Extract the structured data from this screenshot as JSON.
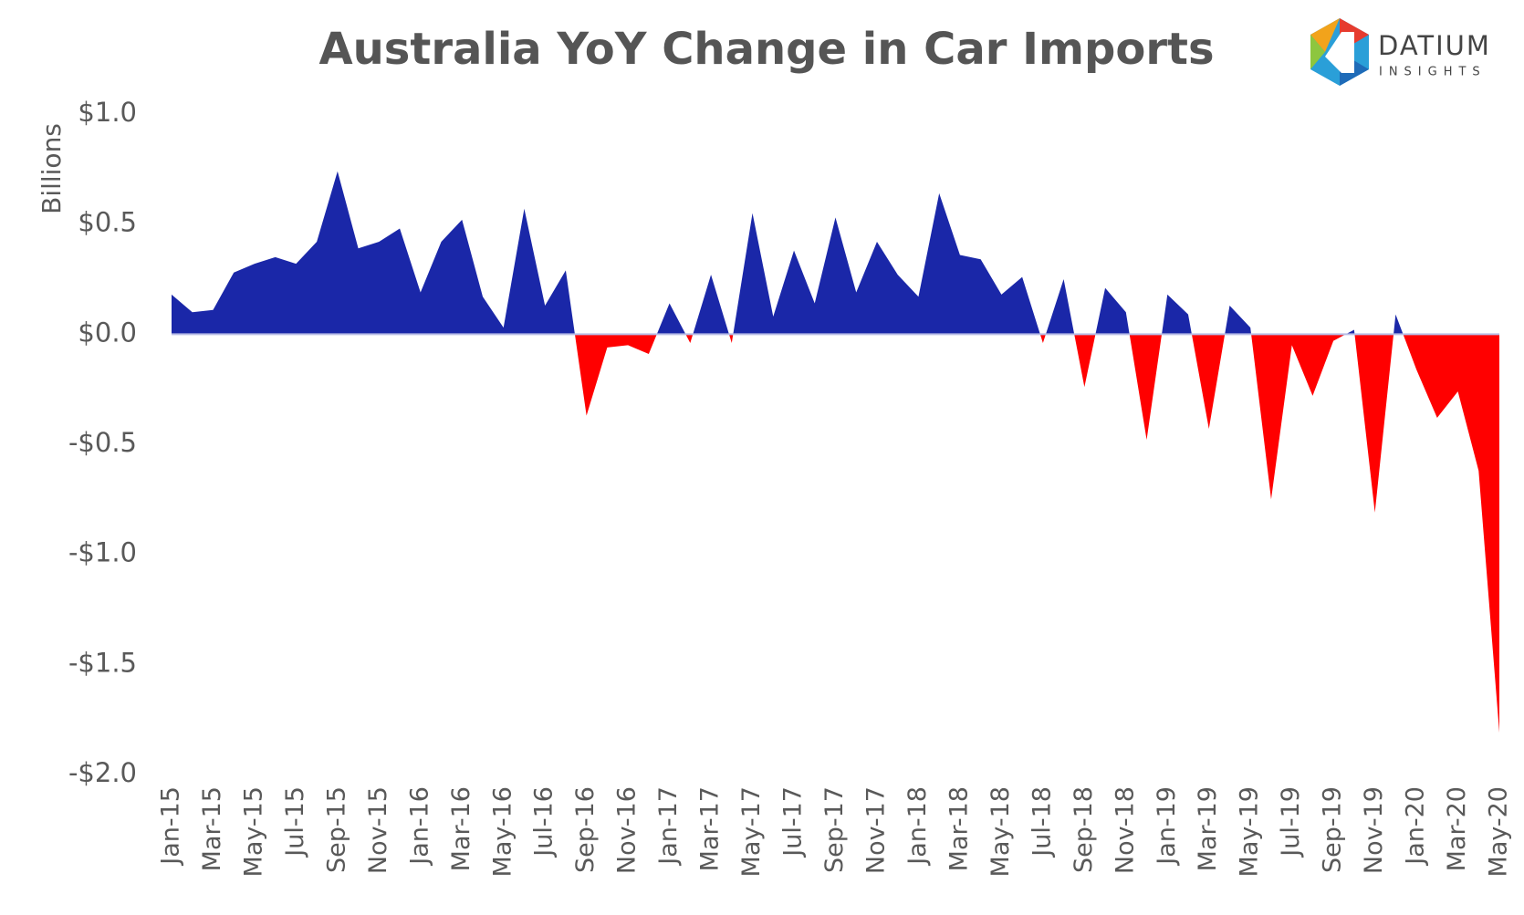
{
  "chart_data": {
    "type": "area",
    "title": "Australia YoY Change in Car Imports",
    "ylabel": "Billions",
    "logo": {
      "name": "DATIUM",
      "tagline": "INSIGHTS"
    },
    "pos_color": "#1a27a8",
    "neg_color": "#ff0000",
    "categories": [
      "Jan-15",
      null,
      "Mar-15",
      null,
      "May-15",
      null,
      "Jul-15",
      null,
      "Sep-15",
      null,
      "Nov-15",
      null,
      "Jan-16",
      null,
      "Mar-16",
      null,
      "May-16",
      null,
      "Jul-16",
      null,
      "Sep-16",
      null,
      "Nov-16",
      null,
      "Jan-17",
      null,
      "Mar-17",
      null,
      "May-17",
      null,
      "Jul-17",
      null,
      "Sep-17",
      null,
      "Nov-17",
      null,
      "Jan-18",
      null,
      "Mar-18",
      null,
      "May-18",
      null,
      "Jul-18",
      null,
      "Sep-18",
      null,
      "Nov-18",
      null,
      "Jan-19",
      null,
      "Mar-19",
      null,
      "May-19",
      null,
      "Jul-19",
      null,
      "Sep-19",
      null,
      "Nov-19",
      null,
      "Jan-20",
      null,
      "Mar-20",
      null,
      "May-20"
    ],
    "values": [
      0.18,
      0.1,
      0.11,
      0.28,
      0.32,
      0.35,
      0.32,
      0.42,
      0.74,
      0.39,
      0.42,
      0.48,
      0.19,
      0.42,
      0.52,
      0.17,
      0.03,
      0.57,
      0.13,
      0.29,
      -0.37,
      -0.06,
      -0.05,
      -0.09,
      0.14,
      -0.04,
      0.27,
      -0.04,
      0.55,
      0.08,
      0.38,
      0.14,
      0.53,
      0.19,
      0.42,
      0.27,
      0.17,
      0.64,
      0.36,
      0.34,
      0.18,
      0.26,
      -0.04,
      0.25,
      -0.24,
      0.21,
      0.1,
      -0.48,
      0.18,
      0.09,
      -0.43,
      0.13,
      0.03,
      -0.75,
      -0.05,
      -0.28,
      -0.03,
      0.02,
      -0.81,
      0.09,
      -0.16,
      -0.38,
      -0.26,
      -0.62,
      -1.81
    ],
    "ylim": [
      -2,
      1
    ],
    "yticks": [
      {
        "value": 1,
        "label": "$1.0"
      },
      {
        "value": 0.5,
        "label": "$0.5"
      },
      {
        "value": 0,
        "label": "$0.0"
      },
      {
        "value": -0.5,
        "label": "-$0.5"
      },
      {
        "value": -1,
        "label": "-$1.0"
      },
      {
        "value": -1.5,
        "label": "-$1.5"
      },
      {
        "value": -2,
        "label": "-$2.0"
      }
    ]
  }
}
